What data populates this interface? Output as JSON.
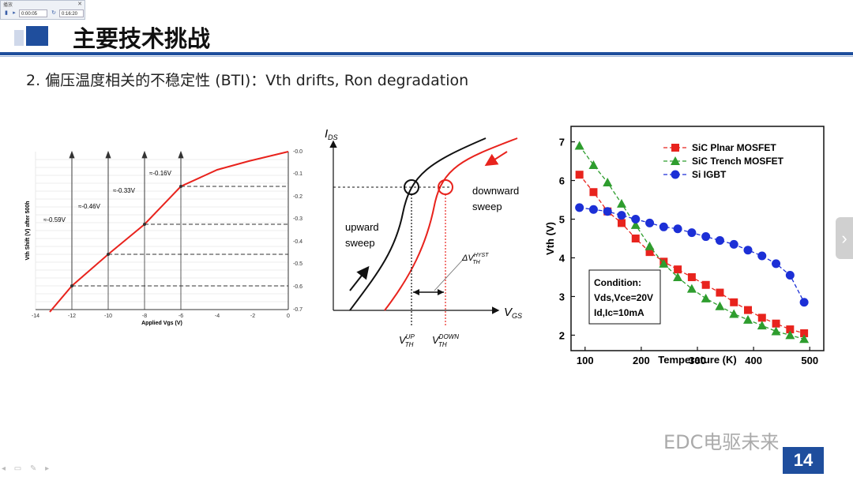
{
  "player": {
    "title": "播放",
    "time_current": "0:00:05",
    "time_total": "0:16:20",
    "close_glyph": "✕"
  },
  "slide": {
    "title": "主要技术挑战",
    "subtitle": "2. 偏压温度相关的不稳定性 (BTI)：Vth drifts, Ron degradation",
    "page_number": "14",
    "watermark": "EDC电驱未来"
  },
  "left_chart": {
    "ylabel": "Vth Shift (V) after 500h",
    "xlabel": "Applied Vgs (V)",
    "x_ticks": [
      "-14",
      "-12",
      "-10",
      "-8",
      "-6",
      "-4",
      "-2",
      "0"
    ],
    "y_ticks": [
      "-0.0",
      "-0.1",
      "-0.2",
      "-0.3",
      "-0.4",
      "-0.5",
      "-0.6",
      "-0.7"
    ],
    "annotations": [
      "≈-0.59V",
      "≈-0.46V",
      "≈-0.33V",
      "≈-0.16V"
    ]
  },
  "middle_diagram": {
    "y_axis": "I",
    "y_axis_sub": "DS",
    "x_axis": "V",
    "x_axis_sub": "GS",
    "upward_1": "upward",
    "upward_2": "sweep",
    "downward_1": "downward",
    "downward_2": "sweep",
    "hyst": "ΔV",
    "hyst_sub": "TH",
    "hyst_sup": "HYST",
    "vth_up": "V",
    "vth_up_sub": "TH",
    "vth_up_sup": "UP",
    "vth_down": "V",
    "vth_down_sub": "TH",
    "vth_down_sup": "DOWN"
  },
  "chart_data": {
    "type": "line",
    "xlabel": "Temperature (K)",
    "ylabel": "Vth (V)",
    "xlim": [
      75,
      525
    ],
    "ylim": [
      1.6,
      7.4
    ],
    "x_ticks": [
      "100",
      "200",
      "300",
      "400",
      "500"
    ],
    "y_ticks": [
      "2",
      "3",
      "4",
      "5",
      "6",
      "7"
    ],
    "legend_position": "top-right",
    "condition_lines": [
      "Condition:",
      "Vds,Vce=20V",
      "Id,Ic=10mA"
    ],
    "series": [
      {
        "name": "SiC Plnar MOSFET",
        "marker": "square",
        "color": "#e8231d",
        "x": [
          90,
          115,
          140,
          165,
          190,
          215,
          240,
          265,
          290,
          315,
          340,
          365,
          390,
          415,
          440,
          465,
          490
        ],
        "values": [
          6.15,
          5.7,
          5.2,
          4.9,
          4.5,
          4.15,
          3.9,
          3.7,
          3.5,
          3.3,
          3.1,
          2.85,
          2.65,
          2.45,
          2.3,
          2.15,
          2.05
        ]
      },
      {
        "name": "SiC Trench MOSFET",
        "marker": "triangle",
        "color": "#2e9d2e",
        "x": [
          90,
          115,
          140,
          165,
          190,
          215,
          240,
          265,
          290,
          315,
          340,
          365,
          390,
          415,
          440,
          465,
          490
        ],
        "values": [
          6.9,
          6.4,
          5.95,
          5.4,
          4.85,
          4.3,
          3.85,
          3.5,
          3.2,
          2.95,
          2.75,
          2.55,
          2.4,
          2.25,
          2.1,
          2.0,
          1.9
        ]
      },
      {
        "name": "Si IGBT",
        "marker": "circle",
        "color": "#1c2fd6",
        "x": [
          90,
          115,
          140,
          165,
          190,
          215,
          240,
          265,
          290,
          315,
          340,
          365,
          390,
          415,
          440,
          465,
          490
        ],
        "values": [
          5.3,
          5.25,
          5.2,
          5.1,
          5.0,
          4.9,
          4.8,
          4.75,
          4.65,
          4.55,
          4.45,
          4.35,
          4.2,
          4.05,
          3.85,
          3.55,
          2.85
        ]
      }
    ]
  }
}
